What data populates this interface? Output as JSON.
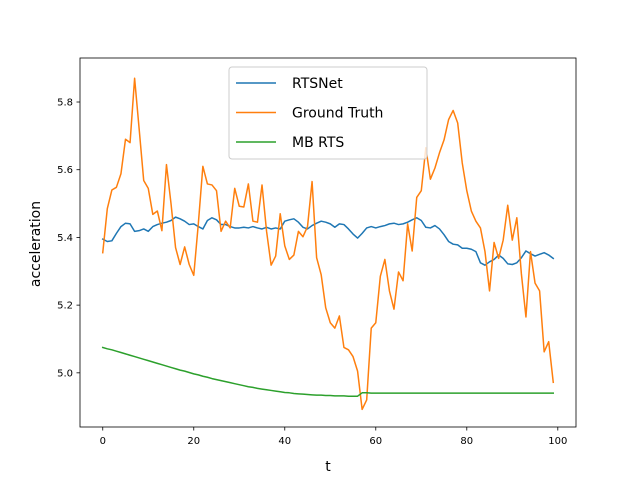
{
  "chart_data": {
    "type": "line",
    "title": "",
    "xlabel": "t",
    "ylabel": "acceleration",
    "xlim": [
      -5,
      104
    ],
    "ylim": [
      4.84,
      5.93
    ],
    "xticks": [
      0,
      20,
      40,
      60,
      80,
      100
    ],
    "yticks": [
      5.0,
      5.2,
      5.4,
      5.6,
      5.8
    ],
    "xtick_labels": [
      "0",
      "20",
      "40",
      "60",
      "80",
      "100"
    ],
    "ytick_labels": [
      "5.0",
      "5.2",
      "5.4",
      "5.6",
      "5.8"
    ],
    "grid": false,
    "legend_position": "top-center",
    "x": [
      0,
      1,
      2,
      3,
      4,
      5,
      6,
      7,
      8,
      9,
      10,
      11,
      12,
      13,
      14,
      15,
      16,
      17,
      18,
      19,
      20,
      21,
      22,
      23,
      24,
      25,
      26,
      27,
      28,
      29,
      30,
      31,
      32,
      33,
      34,
      35,
      36,
      37,
      38,
      39,
      40,
      41,
      42,
      43,
      44,
      45,
      46,
      47,
      48,
      49,
      50,
      51,
      52,
      53,
      54,
      55,
      56,
      57,
      58,
      59,
      60,
      61,
      62,
      63,
      64,
      65,
      66,
      67,
      68,
      69,
      70,
      71,
      72,
      73,
      74,
      75,
      76,
      77,
      78,
      79,
      80,
      81,
      82,
      83,
      84,
      85,
      86,
      87,
      88,
      89,
      90,
      91,
      92,
      93,
      94,
      95,
      96,
      97,
      98,
      99
    ],
    "series": [
      {
        "name": "RTSNet",
        "color": "#1f77b4",
        "values": [
          5.395,
          5.388,
          5.39,
          5.412,
          5.432,
          5.442,
          5.44,
          5.418,
          5.42,
          5.425,
          5.418,
          5.432,
          5.438,
          5.442,
          5.445,
          5.45,
          5.46,
          5.455,
          5.448,
          5.438,
          5.44,
          5.432,
          5.425,
          5.45,
          5.458,
          5.452,
          5.438,
          5.438,
          5.432,
          5.428,
          5.428,
          5.43,
          5.428,
          5.432,
          5.428,
          5.425,
          5.43,
          5.425,
          5.428,
          5.425,
          5.448,
          5.452,
          5.455,
          5.445,
          5.43,
          5.425,
          5.435,
          5.442,
          5.448,
          5.445,
          5.44,
          5.43,
          5.44,
          5.438,
          5.425,
          5.41,
          5.398,
          5.412,
          5.428,
          5.432,
          5.428,
          5.432,
          5.435,
          5.44,
          5.442,
          5.438,
          5.44,
          5.445,
          5.452,
          5.458,
          5.45,
          5.43,
          5.428,
          5.435,
          5.425,
          5.408,
          5.388,
          5.38,
          5.378,
          5.368,
          5.368,
          5.365,
          5.358,
          5.325,
          5.318,
          5.328,
          5.335,
          5.348,
          5.338,
          5.322,
          5.32,
          5.325,
          5.34,
          5.36,
          5.352,
          5.345,
          5.35,
          5.355,
          5.348,
          5.338
        ]
      },
      {
        "name": "Ground Truth",
        "color": "#ff7f0e",
        "values": [
          5.355,
          5.485,
          5.54,
          5.548,
          5.588,
          5.69,
          5.68,
          5.87,
          5.72,
          5.568,
          5.545,
          5.468,
          5.478,
          5.42,
          5.615,
          5.5,
          5.37,
          5.32,
          5.372,
          5.32,
          5.288,
          5.44,
          5.61,
          5.558,
          5.555,
          5.538,
          5.418,
          5.448,
          5.428,
          5.545,
          5.492,
          5.49,
          5.558,
          5.448,
          5.445,
          5.555,
          5.418,
          5.318,
          5.345,
          5.47,
          5.375,
          5.335,
          5.348,
          5.418,
          5.402,
          5.432,
          5.565,
          5.34,
          5.29,
          5.192,
          5.148,
          5.132,
          5.168,
          5.075,
          5.068,
          5.048,
          5.005,
          4.892,
          4.92,
          5.132,
          5.148,
          5.285,
          5.335,
          5.242,
          5.188,
          5.298,
          5.272,
          5.44,
          5.36,
          5.518,
          5.538,
          5.665,
          5.572,
          5.605,
          5.65,
          5.688,
          5.748,
          5.775,
          5.738,
          5.62,
          5.538,
          5.478,
          5.448,
          5.428,
          5.358,
          5.242,
          5.385,
          5.338,
          5.392,
          5.495,
          5.392,
          5.458,
          5.292,
          5.165,
          5.358,
          5.265,
          5.242,
          5.062,
          5.092,
          4.972
        ]
      },
      {
        "name": "MB RTS",
        "color": "#2ca02c",
        "values": [
          5.075,
          5.071,
          5.068,
          5.064,
          5.06,
          5.056,
          5.052,
          5.048,
          5.044,
          5.04,
          5.036,
          5.032,
          5.028,
          5.024,
          5.02,
          5.016,
          5.012,
          5.008,
          5.005,
          5.001,
          4.997,
          4.994,
          4.99,
          4.987,
          4.983,
          4.98,
          4.977,
          4.974,
          4.971,
          4.968,
          4.965,
          4.962,
          4.959,
          4.957,
          4.954,
          4.952,
          4.95,
          4.948,
          4.946,
          4.944,
          4.942,
          4.941,
          4.939,
          4.938,
          4.937,
          4.936,
          4.935,
          4.934,
          4.934,
          4.933,
          4.933,
          4.932,
          4.932,
          4.932,
          4.931,
          4.931,
          4.931,
          4.941,
          4.941,
          4.94,
          4.94,
          4.94,
          4.94,
          4.94,
          4.94,
          4.94,
          4.94,
          4.94,
          4.94,
          4.94,
          4.94,
          4.94,
          4.94,
          4.94,
          4.94,
          4.94,
          4.94,
          4.94,
          4.94,
          4.94,
          4.94,
          4.94,
          4.94,
          4.94,
          4.94,
          4.94,
          4.94,
          4.94,
          4.94,
          4.94,
          4.94,
          4.94,
          4.94,
          4.94,
          4.94,
          4.94,
          4.94,
          4.94,
          4.94,
          4.94
        ]
      }
    ]
  }
}
